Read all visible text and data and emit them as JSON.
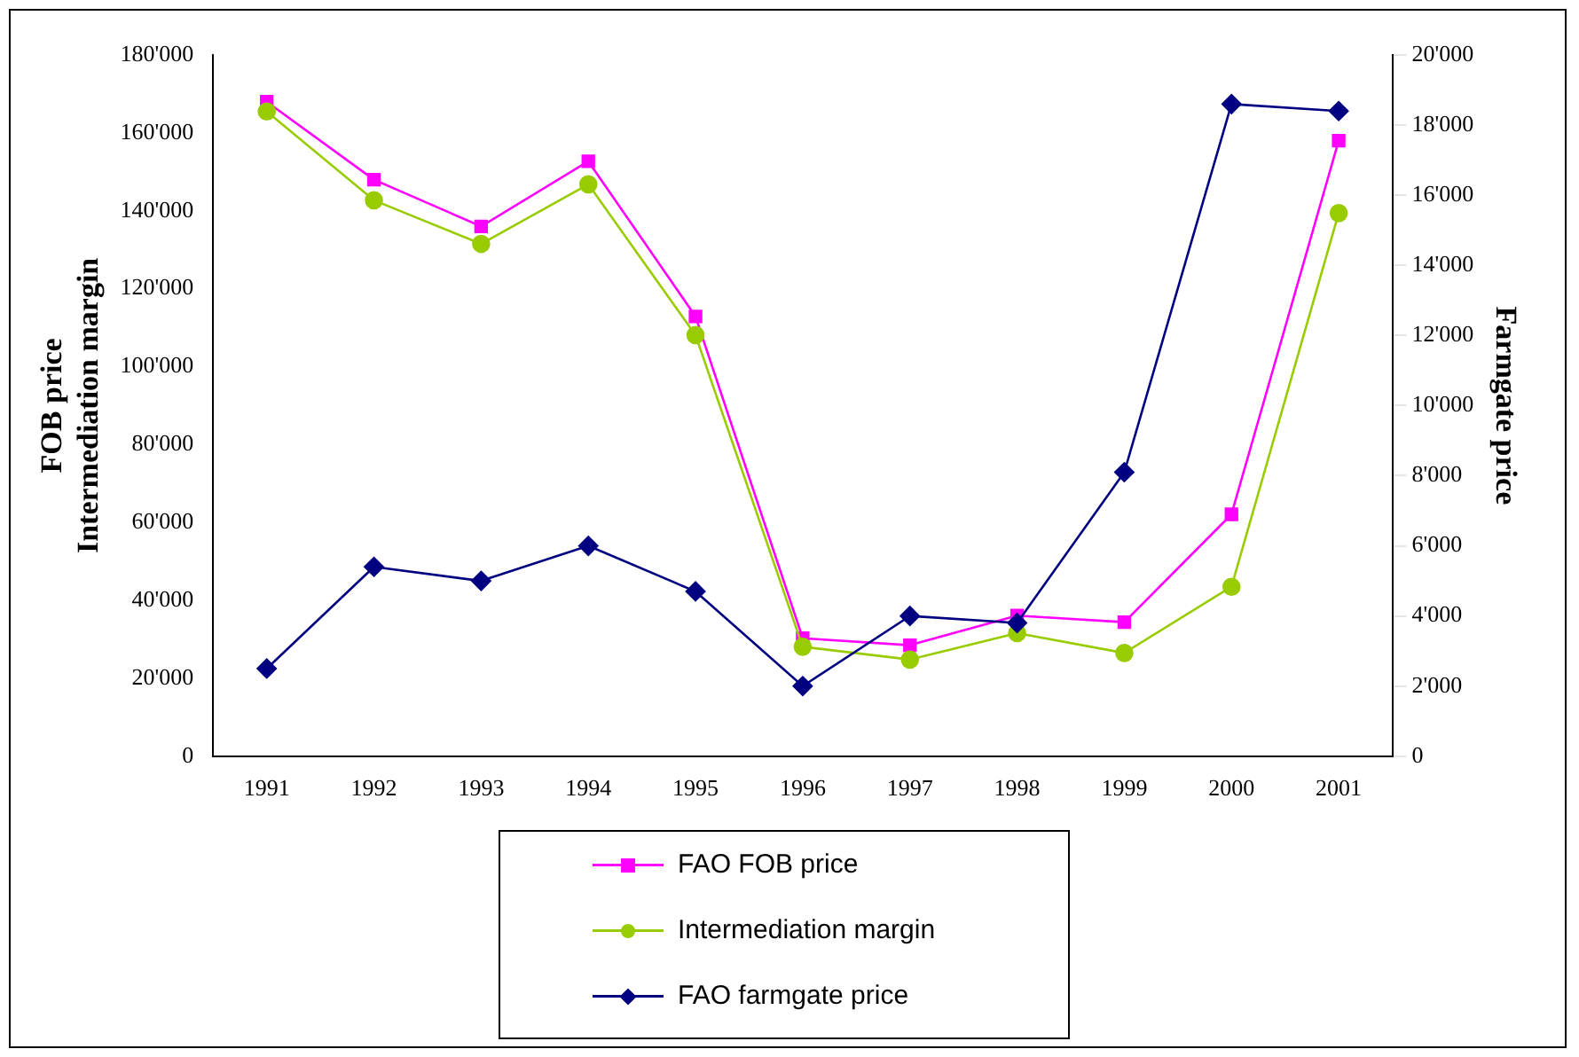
{
  "chart_data": {
    "type": "line",
    "ylabel": "FOB price\nIntermediation margin",
    "y2label": "Farmgate price",
    "categories": [
      "1991",
      "1992",
      "1993",
      "1994",
      "1995",
      "1996",
      "1997",
      "1998",
      "1999",
      "2000",
      "2001"
    ],
    "series": [
      {
        "name": "FAO FOB price",
        "color": "#ff00ff",
        "marker": "square",
        "values": [
          168000,
          148000,
          136000,
          152700,
          112900,
          30300,
          28500,
          36100,
          34400,
          62100,
          158000
        ]
      },
      {
        "name": "Intermediation margin",
        "color": "#99cc00",
        "marker": "circle",
        "values": [
          165500,
          142700,
          131500,
          146800,
          108100,
          28100,
          24800,
          31600,
          26500,
          43500,
          139400
        ]
      },
      {
        "name": "FAO farmgate price",
        "color": "#000080",
        "marker": "diamond",
        "axis": "y2",
        "values": [
          2500,
          5400,
          5000,
          6000,
          4700,
          2000,
          4000,
          3800,
          8100,
          18600,
          18400
        ]
      }
    ],
    "ylim": [
      0,
      180000
    ],
    "yticks": [
      {
        "value": 0,
        "label": "0"
      },
      {
        "value": 20000,
        "label": "20'000"
      },
      {
        "value": 40000,
        "label": "40'000"
      },
      {
        "value": 60000,
        "label": "60'000"
      },
      {
        "value": 80000,
        "label": "80'000"
      },
      {
        "value": 100000,
        "label": "100'000"
      },
      {
        "value": 120000,
        "label": "120'000"
      },
      {
        "value": 140000,
        "label": "140'000"
      },
      {
        "value": 160000,
        "label": "160'000"
      },
      {
        "value": 180000,
        "label": "180'000"
      }
    ],
    "y2lim": [
      0,
      20000
    ],
    "y2ticks": [
      {
        "value": 0,
        "label": "0"
      },
      {
        "value": 2000,
        "label": "2'000"
      },
      {
        "value": 4000,
        "label": "4'000"
      },
      {
        "value": 6000,
        "label": "6'000"
      },
      {
        "value": 8000,
        "label": "8'000"
      },
      {
        "value": 10000,
        "label": "10'000"
      },
      {
        "value": 12000,
        "label": "12'000"
      },
      {
        "value": 14000,
        "label": "14'000"
      },
      {
        "value": 16000,
        "label": "16'000"
      },
      {
        "value": 18000,
        "label": "18'000"
      },
      {
        "value": 20000,
        "label": "20'000"
      }
    ],
    "grid": false,
    "legend": "bottom"
  }
}
